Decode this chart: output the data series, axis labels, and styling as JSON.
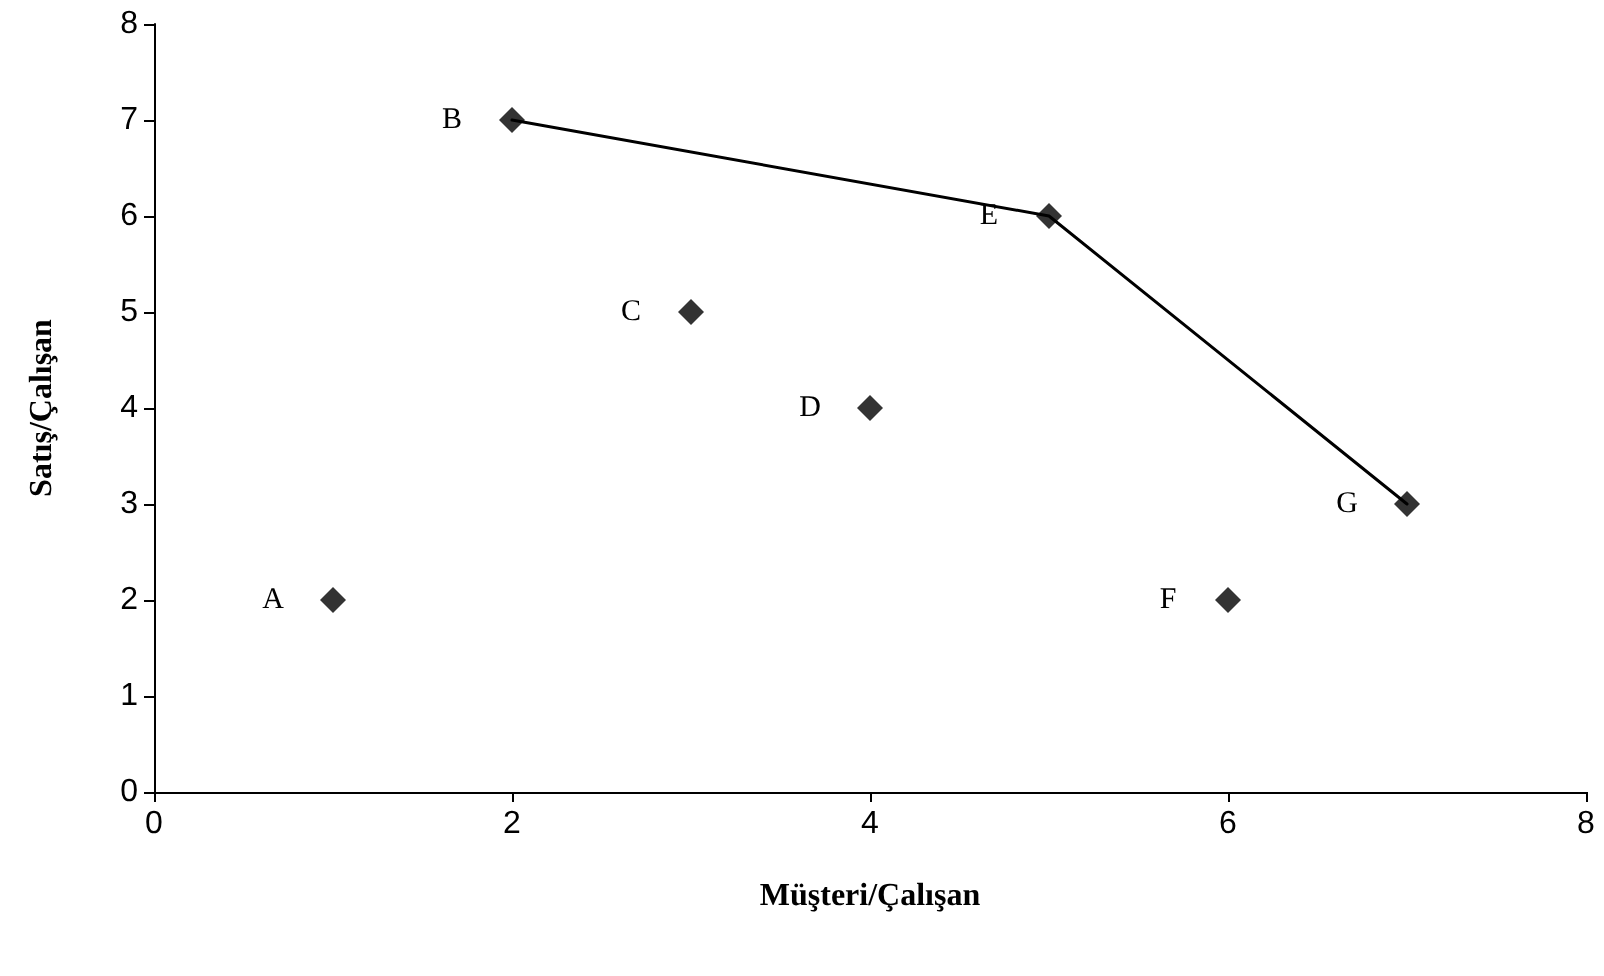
{
  "chart_data": {
    "type": "scatter",
    "xlabel": "Müşteri/Çalışan",
    "ylabel": "Satış/Çalışan",
    "xlim": [
      0,
      8
    ],
    "xticks": [
      0,
      2,
      4,
      6,
      8
    ],
    "ylim": [
      0,
      8
    ],
    "yticks": [
      0,
      1,
      2,
      3,
      4,
      5,
      6,
      7,
      8
    ],
    "grid": false,
    "marker": "diamond",
    "series": [
      {
        "color": "#000000",
        "x": [
          1,
          2,
          3,
          4,
          5,
          6,
          7
        ],
        "values": [
          2,
          7,
          5,
          4,
          6,
          2,
          3
        ]
      },
      {
        "type": "line",
        "color": "#000000",
        "marker": "none",
        "line_style": "solid",
        "x": [
          2,
          5,
          7
        ],
        "values": [
          7,
          6,
          3
        ]
      }
    ],
    "annotations": [
      {
        "text": "A",
        "x": 1,
        "y": 2
      },
      {
        "text": "B",
        "x": 2,
        "y": 7
      },
      {
        "text": "C",
        "x": 3,
        "y": 5
      },
      {
        "text": "D",
        "x": 4,
        "y": 4
      },
      {
        "text": "E",
        "x": 5,
        "y": 6
      },
      {
        "text": "F",
        "x": 6,
        "y": 2
      },
      {
        "text": "G",
        "x": 7,
        "y": 3
      }
    ]
  }
}
